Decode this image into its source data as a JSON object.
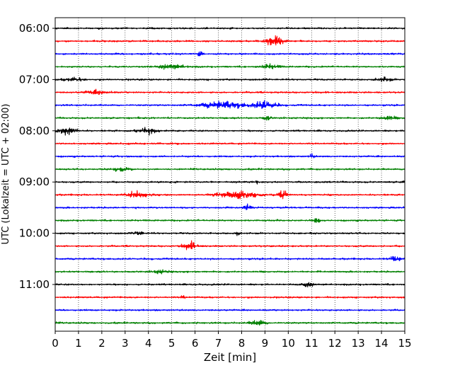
{
  "chart_data": {
    "type": "line",
    "title": "",
    "xlabel": "Zeit  [min]",
    "ylabel": "UTC (Lokalzeit = UTC + 02:00)",
    "xlim": [
      0,
      15
    ],
    "xticks": [
      0,
      1,
      2,
      3,
      4,
      5,
      6,
      7,
      8,
      9,
      10,
      11,
      12,
      13,
      14,
      15
    ],
    "yticks": [
      {
        "trace": 0,
        "label": "06:00"
      },
      {
        "trace": 4,
        "label": "07:00"
      },
      {
        "trace": 8,
        "label": "08:00"
      },
      {
        "trace": 12,
        "label": "09:00"
      },
      {
        "trace": 16,
        "label": "10:00"
      },
      {
        "trace": 20,
        "label": "11:00"
      }
    ],
    "grid": "vertical-dotted",
    "trace_interval_min": 15,
    "colors": [
      "#000000",
      "#ff0000",
      "#0000ff",
      "#008000"
    ],
    "traces": [
      {
        "start": "06:00",
        "color": "#000000",
        "events": []
      },
      {
        "start": "06:15",
        "color": "#ff0000",
        "events": [
          {
            "t": 9.4,
            "amp": 0.85,
            "w": 0.35
          }
        ]
      },
      {
        "start": "06:30",
        "color": "#0000ff",
        "events": [
          {
            "t": 6.2,
            "amp": 0.45,
            "w": 0.12
          }
        ]
      },
      {
        "start": "06:45",
        "color": "#008000",
        "events": [
          {
            "t": 5.0,
            "amp": 0.3,
            "w": 0.6
          },
          {
            "t": 9.2,
            "amp": 0.3,
            "w": 0.4
          }
        ]
      },
      {
        "start": "07:00",
        "color": "#000000",
        "events": [
          {
            "t": 0.8,
            "amp": 0.3,
            "w": 0.4
          },
          {
            "t": 14.1,
            "amp": 0.3,
            "w": 0.3
          }
        ]
      },
      {
        "start": "07:15",
        "color": "#ff0000",
        "events": [
          {
            "t": 1.8,
            "amp": 0.25,
            "w": 0.5
          }
        ]
      },
      {
        "start": "07:30",
        "color": "#0000ff",
        "events": [
          {
            "t": 7.2,
            "amp": 0.5,
            "w": 0.9
          },
          {
            "t": 9.0,
            "amp": 0.55,
            "w": 0.5
          }
        ]
      },
      {
        "start": "07:45",
        "color": "#008000",
        "events": [
          {
            "t": 9.1,
            "amp": 0.35,
            "w": 0.15
          },
          {
            "t": 14.3,
            "amp": 0.3,
            "w": 0.3
          }
        ]
      },
      {
        "start": "08:00",
        "color": "#000000",
        "events": [
          {
            "t": 0.5,
            "amp": 0.6,
            "w": 0.4
          },
          {
            "t": 4.0,
            "amp": 0.45,
            "w": 0.4
          }
        ]
      },
      {
        "start": "08:15",
        "color": "#ff0000",
        "events": []
      },
      {
        "start": "08:30",
        "color": "#0000ff",
        "events": [
          {
            "t": 11.0,
            "amp": 0.35,
            "w": 0.1
          }
        ]
      },
      {
        "start": "08:45",
        "color": "#008000",
        "events": [
          {
            "t": 2.8,
            "amp": 0.25,
            "w": 0.4
          }
        ]
      },
      {
        "start": "09:00",
        "color": "#000000",
        "events": [
          {
            "t": 8.6,
            "amp": 0.35,
            "w": 0.08
          },
          {
            "t": 15.0,
            "amp": 0.3,
            "w": 0.1
          }
        ]
      },
      {
        "start": "09:15",
        "color": "#ff0000",
        "events": [
          {
            "t": 3.5,
            "amp": 0.4,
            "w": 0.5
          },
          {
            "t": 7.8,
            "amp": 0.45,
            "w": 0.8
          },
          {
            "t": 9.8,
            "amp": 0.6,
            "w": 0.25
          }
        ]
      },
      {
        "start": "09:30",
        "color": "#0000ff",
        "events": [
          {
            "t": 8.2,
            "amp": 0.4,
            "w": 0.15
          }
        ]
      },
      {
        "start": "09:45",
        "color": "#008000",
        "events": [
          {
            "t": 11.2,
            "amp": 0.35,
            "w": 0.2
          }
        ]
      },
      {
        "start": "10:00",
        "color": "#000000",
        "events": [
          {
            "t": 3.6,
            "amp": 0.35,
            "w": 0.15
          },
          {
            "t": 7.8,
            "amp": 0.3,
            "w": 0.1
          }
        ]
      },
      {
        "start": "10:15",
        "color": "#ff0000",
        "events": [
          {
            "t": 5.8,
            "amp": 0.5,
            "w": 0.3
          }
        ]
      },
      {
        "start": "10:30",
        "color": "#0000ff",
        "events": [
          {
            "t": 14.6,
            "amp": 0.4,
            "w": 0.25
          }
        ]
      },
      {
        "start": "10:45",
        "color": "#008000",
        "events": [
          {
            "t": 4.5,
            "amp": 0.25,
            "w": 0.3
          }
        ]
      },
      {
        "start": "11:00",
        "color": "#000000",
        "events": [
          {
            "t": 10.8,
            "amp": 0.3,
            "w": 0.25
          }
        ]
      },
      {
        "start": "11:15",
        "color": "#ff0000",
        "events": [
          {
            "t": 5.5,
            "amp": 0.25,
            "w": 0.1
          }
        ]
      },
      {
        "start": "11:30",
        "color": "#0000ff",
        "events": []
      },
      {
        "start": "11:45",
        "color": "#008000",
        "events": [
          {
            "t": 8.7,
            "amp": 0.45,
            "w": 0.3
          }
        ]
      }
    ]
  }
}
